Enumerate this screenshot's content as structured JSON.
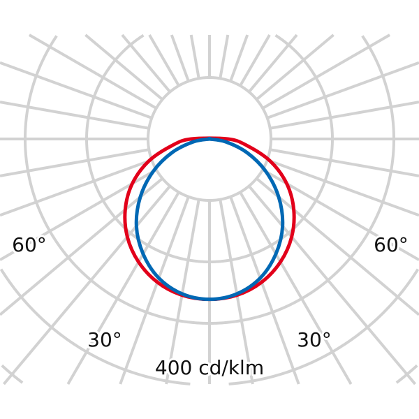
{
  "chart_data": {
    "type": "polar",
    "angle_unit": "degrees",
    "radial_unit": "cd/klm",
    "scale_label": "400 cd/klm",
    "angle_labels": [
      {
        "text": "60°",
        "angle": -60
      },
      {
        "text": "30°",
        "angle": -30
      },
      {
        "text": "30°",
        "angle": 30
      },
      {
        "text": "60°",
        "angle": 60
      }
    ],
    "ring_values": [
      100,
      200,
      300,
      400,
      500,
      600
    ],
    "radial_step_deg": 10,
    "grid": true,
    "angles": [
      0,
      10,
      20,
      30,
      40,
      50,
      60,
      70,
      80,
      90
    ],
    "series": [
      {
        "color": "#e2001a",
        "values": [
          261,
          258,
          248,
          231,
          208,
          179,
          145,
          105,
          62,
          30
        ]
      },
      {
        "color": "#0068b4",
        "values": [
          261,
          256,
          241,
          216,
          185,
          147,
          106,
          65,
          27,
          0
        ]
      }
    ],
    "grid_color": "#d2d2d2"
  }
}
